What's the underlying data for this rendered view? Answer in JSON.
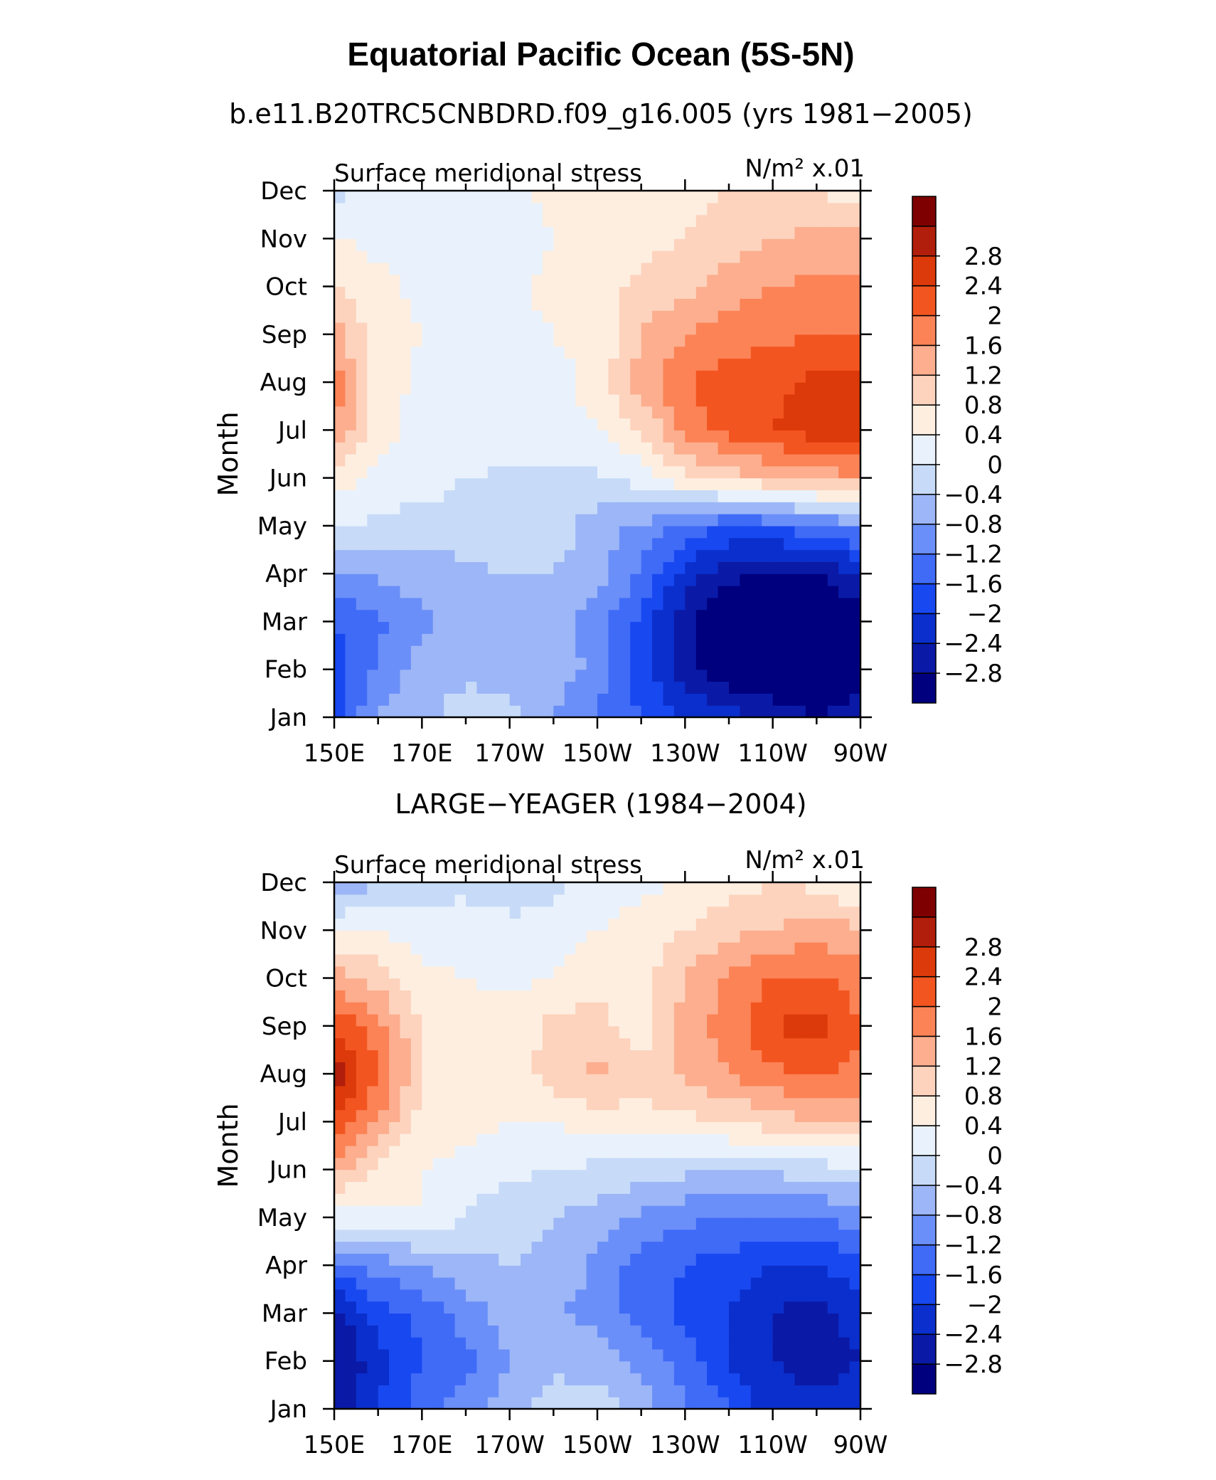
{
  "figure": {
    "title": "Equatorial Pacific Ocean (5S-5N)"
  },
  "colorbar": {
    "levels": [
      -2.8,
      -2.4,
      -2,
      -1.6,
      -1.2,
      -0.8,
      -0.4,
      0,
      0.4,
      0.8,
      1.2,
      1.6,
      2,
      2.4,
      2.8
    ],
    "level_labels": [
      "−2.8",
      "−2.4",
      "−2",
      "−1.6",
      "−1.2",
      "−0.8",
      "−0.4",
      "0",
      "0.4",
      "0.8",
      "1.2",
      "1.6",
      "2",
      "2.4",
      "2.8"
    ],
    "colors": [
      "#00007f",
      "#0a1aa6",
      "#0b2fcc",
      "#1848f0",
      "#3f6bf7",
      "#6b8ff8",
      "#9cb6f7",
      "#c7dbf8",
      "#e9f2fc",
      "#fdeee0",
      "#fdd3bd",
      "#fcae8f",
      "#fb8356",
      "#f35520",
      "#dd3a0b",
      "#b11e0b",
      "#7f0000"
    ]
  },
  "chart_data": [
    {
      "type": "heatmap",
      "title": "b.e11.B20TRC5CNBDRD.f09_g16.005 (yrs 1981−2005)",
      "left_label": "Surface meridional stress",
      "units": "N/m² x.01",
      "xlabel": "",
      "ylabel": "Month",
      "x_tick_labels": [
        "150E",
        "170E",
        "170W",
        "150W",
        "130W",
        "110W",
        "90W"
      ],
      "x_values_deg_lon": [
        150,
        170,
        190,
        210,
        230,
        250,
        270
      ],
      "y_tick_labels": [
        "Jan",
        "Feb",
        "Mar",
        "Apr",
        "May",
        "Jun",
        "Jul",
        "Aug",
        "Sep",
        "Oct",
        "Nov",
        "Dec"
      ],
      "z_units": "N/m² x.01",
      "z": [
        [
          -1.7,
          -0.8,
          -0.5,
          -0.2,
          -0.3,
          -0.8,
          -1.3,
          -1.6,
          -2.0,
          -2.2,
          -2.6,
          -2.8,
          -2.6
        ],
        [
          -1.8,
          -1.1,
          -0.6,
          -0.5,
          -0.5,
          -0.6,
          -0.9,
          -1.8,
          -2.6,
          -3.2,
          -3.2,
          -3.2,
          -3.0
        ],
        [
          -1.6,
          -1.3,
          -0.9,
          -0.6,
          -0.6,
          -0.7,
          -1.0,
          -1.7,
          -2.7,
          -3.2,
          -3.2,
          -3.2,
          -3.0
        ],
        [
          -0.9,
          -0.7,
          -0.6,
          -0.5,
          -0.4,
          -0.4,
          -0.6,
          -1.3,
          -2.2,
          -2.7,
          -2.9,
          -2.8,
          -2.4
        ],
        [
          0.1,
          -0.1,
          -0.2,
          -0.2,
          -0.1,
          -0.2,
          -0.6,
          -0.9,
          -1.3,
          -1.6,
          -1.5,
          -1.3,
          -1.0
        ],
        [
          0.6,
          0.3,
          0.2,
          0.0,
          -0.1,
          -0.1,
          -0.1,
          0.2,
          0.7,
          1.0,
          1.2,
          1.4,
          1.5
        ],
        [
          1.7,
          0.5,
          0.3,
          0.3,
          0.3,
          0.3,
          0.4,
          0.8,
          1.7,
          2.2,
          2.4,
          2.6,
          2.6
        ],
        [
          1.8,
          0.6,
          0.3,
          0.2,
          0.2,
          0.3,
          0.5,
          1.4,
          2.0,
          2.2,
          2.3,
          2.5,
          2.5
        ],
        [
          1.4,
          0.6,
          0.4,
          0.3,
          0.3,
          0.4,
          0.5,
          1.2,
          1.6,
          1.8,
          1.9,
          2.0,
          2.0
        ],
        [
          0.8,
          0.5,
          0.3,
          0.2,
          0.3,
          0.5,
          0.6,
          0.9,
          1.1,
          1.4,
          1.6,
          1.7,
          1.7
        ],
        [
          0.4,
          0.3,
          0.2,
          0.2,
          0.2,
          0.4,
          0.6,
          0.7,
          0.8,
          1.0,
          1.2,
          1.3,
          1.3
        ],
        [
          -0.1,
          0.2,
          0.2,
          0.2,
          0.3,
          0.5,
          0.6,
          0.7,
          0.7,
          0.8,
          0.8,
          0.8,
          0.6
        ]
      ]
    },
    {
      "type": "heatmap",
      "title": "LARGE−YEAGER (1984−2004)",
      "left_label": "Surface meridional stress",
      "units": "N/m² x.01",
      "xlabel": "",
      "ylabel": "Month",
      "x_tick_labels": [
        "150E",
        "170E",
        "170W",
        "150W",
        "130W",
        "110W",
        "90W"
      ],
      "x_values_deg_lon": [
        150,
        170,
        190,
        210,
        230,
        250,
        270
      ],
      "y_tick_labels": [
        "Jan",
        "Feb",
        "Mar",
        "Apr",
        "May",
        "Jun",
        "Jul",
        "Aug",
        "Sep",
        "Oct",
        "Nov",
        "Dec"
      ],
      "z_units": "N/m² x.01",
      "z": [
        [
          -2.8,
          -2.0,
          -1.4,
          -1.0,
          -0.5,
          -0.2,
          -0.2,
          -0.5,
          -1.2,
          -1.6,
          -2.2,
          -2.3,
          -2.2
        ],
        [
          -2.8,
          -2.2,
          -1.6,
          -1.4,
          -0.8,
          -0.5,
          -0.6,
          -0.9,
          -1.4,
          -2.0,
          -2.4,
          -2.6,
          -2.4
        ],
        [
          -2.6,
          -1.8,
          -1.5,
          -1.0,
          -0.6,
          -0.8,
          -0.9,
          -1.4,
          -1.7,
          -2.0,
          -2.4,
          -2.6,
          -2.2
        ],
        [
          -1.4,
          -1.0,
          -0.8,
          -0.5,
          -0.4,
          -0.5,
          -0.9,
          -1.4,
          -1.6,
          -1.8,
          -2.0,
          -2.0,
          -1.8
        ],
        [
          0.2,
          0.3,
          0.4,
          -0.1,
          -0.3,
          -0.4,
          -0.6,
          -0.9,
          -1.1,
          -1.2,
          -1.2,
          -1.2,
          -1.0
        ],
        [
          1.4,
          0.6,
          0.4,
          0.3,
          0.1,
          0.0,
          -0.1,
          -0.2,
          -0.3,
          -0.3,
          -0.3,
          -0.2,
          -0.1
        ],
        [
          2.4,
          1.6,
          0.6,
          0.5,
          0.4,
          0.4,
          0.6,
          0.6,
          0.7,
          0.8,
          1.0,
          1.2,
          1.2
        ],
        [
          3.0,
          2.0,
          0.8,
          0.6,
          0.5,
          1.0,
          1.3,
          1.0,
          1.3,
          1.6,
          1.9,
          2.0,
          1.9
        ],
        [
          2.4,
          1.8,
          0.8,
          0.6,
          0.6,
          0.9,
          1.0,
          0.5,
          1.4,
          1.8,
          2.4,
          2.6,
          2.0
        ],
        [
          1.4,
          1.0,
          0.5,
          0.4,
          0.3,
          0.4,
          0.7,
          0.6,
          1.2,
          1.7,
          2.0,
          2.1,
          1.8
        ],
        [
          0.3,
          0.4,
          0.2,
          0.2,
          0.1,
          0.2,
          0.4,
          0.6,
          0.8,
          1.1,
          1.2,
          1.4,
          1.3
        ],
        [
          -0.6,
          -0.5,
          -0.2,
          -0.1,
          -0.2,
          -0.1,
          0.2,
          0.3,
          0.4,
          0.6,
          0.8,
          0.7,
          0.3
        ]
      ]
    }
  ]
}
